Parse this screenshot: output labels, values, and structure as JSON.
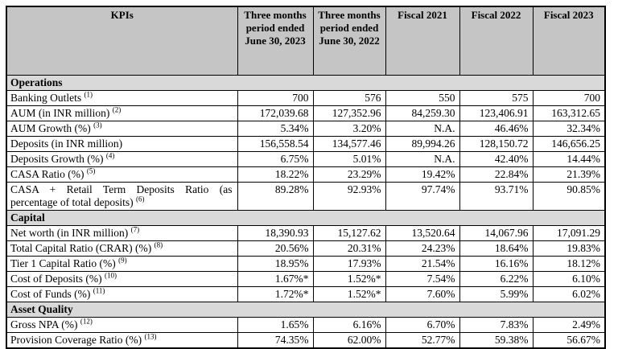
{
  "table": {
    "colors": {
      "header_bg": "#c5c5c5",
      "section_bg": "#d9d9d9",
      "border": "#000000"
    },
    "columns": [
      "KPIs",
      "Three months period ended June 30, 2023",
      "Three months period ended June 30, 2022",
      "Fiscal 2021",
      "Fiscal 2022",
      "Fiscal 2023"
    ],
    "rows": [
      {
        "type": "section",
        "label": "Operations"
      },
      {
        "type": "data",
        "label": "Banking Outlets",
        "sup": "(1)",
        "values": [
          "700",
          "576",
          "550",
          "575",
          "700"
        ]
      },
      {
        "type": "data",
        "label": "AUM (in INR million)",
        "sup": "(2)",
        "values": [
          "172,039.68",
          "127,352.96",
          "84,259.30",
          "123,406.91",
          "163,312.65"
        ]
      },
      {
        "type": "data",
        "label": "AUM Growth (%)",
        "sup": "(3)",
        "values": [
          "5.34%",
          "3.20%",
          "N.A.",
          "46.46%",
          "32.34%"
        ]
      },
      {
        "type": "data",
        "label": "Deposits (in INR million)",
        "sup": "",
        "values": [
          "156,558.54",
          "134,577.46",
          "89,994.26",
          "128,150.72",
          "146,656.25"
        ]
      },
      {
        "type": "data",
        "label": "Deposits Growth (%)",
        "sup": "(4)",
        "values": [
          "6.75%",
          "5.01%",
          "N.A.",
          "42.40%",
          "14.44%"
        ]
      },
      {
        "type": "data",
        "label": "CASA Ratio (%)",
        "sup": "(5)",
        "values": [
          "18.22%",
          "23.29%",
          "19.42%",
          "22.84%",
          "21.39%"
        ]
      },
      {
        "type": "data",
        "label": "CASA + Retail Term Deposits Ratio (as percentage of total deposits)",
        "sup": "(6)",
        "values": [
          "89.28%",
          "92.93%",
          "97.74%",
          "93.71%",
          "90.85%"
        ]
      },
      {
        "type": "section",
        "label": "Capital"
      },
      {
        "type": "data",
        "label": "Net worth (in INR million)",
        "sup": "(7)",
        "values": [
          "18,390.93",
          "15,127.62",
          "13,520.64",
          "14,067.96",
          "17,091.29"
        ]
      },
      {
        "type": "data",
        "label": "Total Capital Ratio (CRAR) (%)",
        "sup": "(8)",
        "values": [
          "20.56%",
          "20.31%",
          "24.23%",
          "18.64%",
          "19.83%"
        ]
      },
      {
        "type": "data",
        "label": "Tier 1 Capital Ratio (%)",
        "sup": "(9)",
        "values": [
          "18.95%",
          "17.93%",
          "21.54%",
          "16.16%",
          "18.12%"
        ]
      },
      {
        "type": "data",
        "label": "Cost of Deposits (%)",
        "sup": "(10)",
        "values": [
          "1.67%*",
          "1.52%*",
          "7.54%",
          "6.22%",
          "6.10%"
        ]
      },
      {
        "type": "data",
        "label": "Cost of Funds (%)",
        "sup": "(11)",
        "values": [
          "1.72%*",
          "1.52%*",
          "7.60%",
          "5.99%",
          "6.02%"
        ]
      },
      {
        "type": "section",
        "label": "Asset Quality"
      },
      {
        "type": "data",
        "label": "Gross NPA (%)",
        "sup": "(12)",
        "values": [
          "1.65%",
          "6.16%",
          "6.70%",
          "7.83%",
          "2.49%"
        ]
      },
      {
        "type": "data",
        "label": "Provision Coverage Ratio (%)",
        "sup": "(13)",
        "values": [
          "74.35%",
          "62.00%",
          "52.77%",
          "59.38%",
          "56.67%"
        ]
      }
    ]
  }
}
